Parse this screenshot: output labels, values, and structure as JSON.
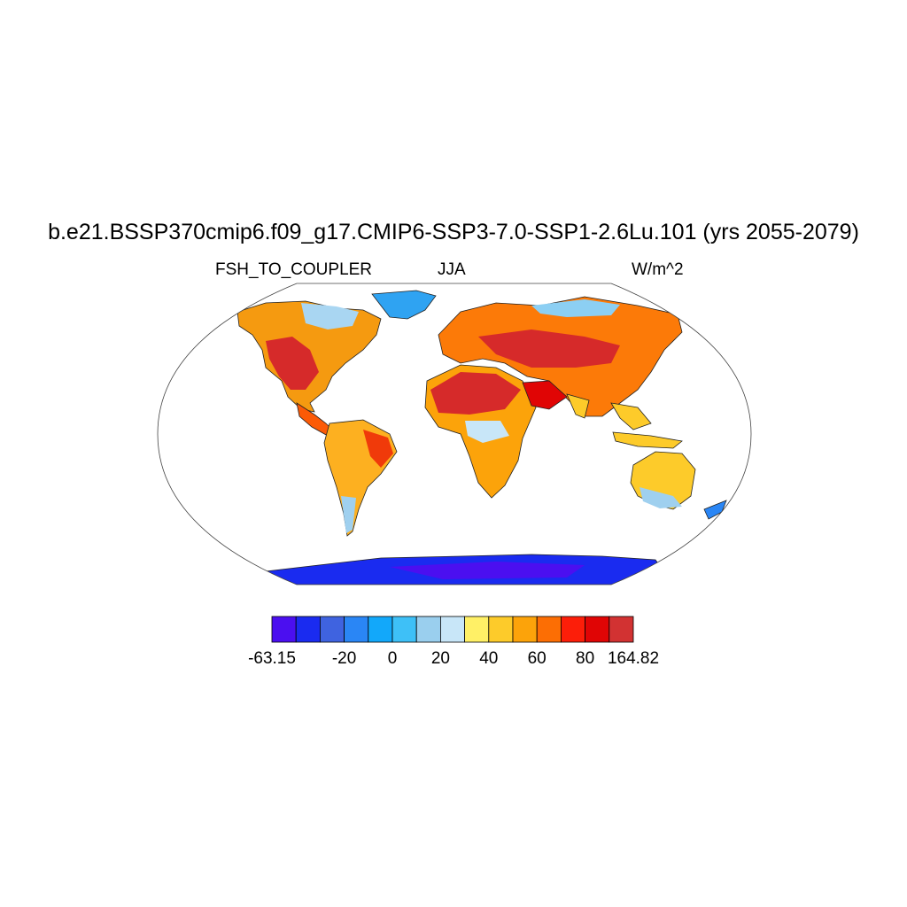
{
  "title": "b.e21.BSSP370cmip6.f09_g17.CMIP6-SSP3-7.0-SSP1-2.6Lu.101 (yrs 2055-2079)",
  "subtitle_left": "FSH_TO_COUPLER",
  "subtitle_center": "JJA",
  "subtitle_right": "W/m^2",
  "colorbar": {
    "colors": [
      "#4b0ff0",
      "#1a2bf0",
      "#3f63e0",
      "#2a86f5",
      "#12a8fa",
      "#3ec0f7",
      "#9acfee",
      "#c8e6f8",
      "#fff066",
      "#fdcb2a",
      "#fca30a",
      "#fc6e04",
      "#fc1e09",
      "#e00505",
      "#d23232"
    ],
    "tick_labels": [
      "-63.15",
      "-20",
      "0",
      "20",
      "40",
      "60",
      "80",
      "164.82"
    ]
  }
}
